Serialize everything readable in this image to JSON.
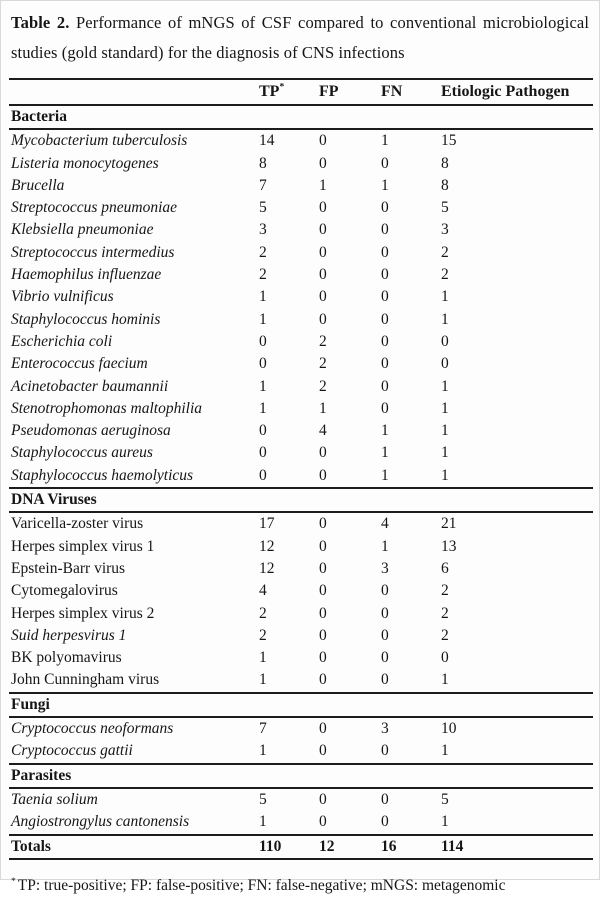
{
  "colors": {
    "background": "#fdfdfd",
    "text": "#161616",
    "rule": "#1c1c1c"
  },
  "title": {
    "label": "Table 2.",
    "text": " Performance of mNGS of CSF compared to conventional microbiological studies (gold standard) for the diagnosis of CNS infections"
  },
  "table": {
    "header": {
      "pathogen": "",
      "tp": "TP",
      "tp_marker": "*",
      "fp": "FP",
      "fn": "FN",
      "ep": "Etiologic Pathogen"
    },
    "sections": [
      {
        "name": "Bacteria",
        "rows": [
          {
            "pathogen": "Mycobacterium tuberculosis",
            "italic": true,
            "tp": "14",
            "fp": "0",
            "fn": "1",
            "ep": "15"
          },
          {
            "pathogen": "Listeria monocytogenes",
            "italic": true,
            "tp": "8",
            "fp": "0",
            "fn": "0",
            "ep": "8"
          },
          {
            "pathogen": "Brucella",
            "italic": true,
            "tp": "7",
            "fp": "1",
            "fn": "1",
            "ep": "8"
          },
          {
            "pathogen": "Streptococcus pneumoniae",
            "italic": true,
            "tp": "5",
            "fp": "0",
            "fn": "0",
            "ep": "5"
          },
          {
            "pathogen": "Klebsiella pneumoniae",
            "italic": true,
            "tp": "3",
            "fp": "0",
            "fn": "0",
            "ep": "3"
          },
          {
            "pathogen": "Streptococcus intermedius",
            "italic": true,
            "tp": "2",
            "fp": "0",
            "fn": "0",
            "ep": "2"
          },
          {
            "pathogen": "Haemophilus influenzae",
            "italic": true,
            "tp": "2",
            "fp": "0",
            "fn": "0",
            "ep": "2"
          },
          {
            "pathogen": "Vibrio vulnificus",
            "italic": true,
            "tp": "1",
            "fp": "0",
            "fn": "0",
            "ep": "1"
          },
          {
            "pathogen": "Staphylococcus hominis",
            "italic": true,
            "tp": "1",
            "fp": "0",
            "fn": "0",
            "ep": "1"
          },
          {
            "pathogen": "Escherichia coli",
            "italic": true,
            "tp": "0",
            "fp": "2",
            "fn": "0",
            "ep": "0"
          },
          {
            "pathogen": "Enterococcus faecium",
            "italic": true,
            "tp": "0",
            "fp": "2",
            "fn": "0",
            "ep": "0"
          },
          {
            "pathogen": "Acinetobacter baumannii",
            "italic": true,
            "tp": "1",
            "fp": "2",
            "fn": "0",
            "ep": "1"
          },
          {
            "pathogen": "Stenotrophomonas maltophilia",
            "italic": true,
            "tp": "1",
            "fp": "1",
            "fn": "0",
            "ep": "1"
          },
          {
            "pathogen": "Pseudomonas aeruginosa",
            "italic": true,
            "tp": "0",
            "fp": "4",
            "fn": "1",
            "ep": "1"
          },
          {
            "pathogen": "Staphylococcus aureus",
            "italic": true,
            "tp": "0",
            "fp": "0",
            "fn": "1",
            "ep": "1"
          },
          {
            "pathogen": "Staphylococcus haemolyticus",
            "italic": true,
            "tp": "0",
            "fp": "0",
            "fn": "1",
            "ep": "1"
          }
        ]
      },
      {
        "name": "DNA Viruses",
        "rows": [
          {
            "pathogen": "Varicella-zoster virus",
            "italic": false,
            "tp": "17",
            "fp": "0",
            "fn": "4",
            "ep": "21"
          },
          {
            "pathogen": "Herpes simplex virus 1",
            "italic": false,
            "tp": "12",
            "fp": "0",
            "fn": "1",
            "ep": "13"
          },
          {
            "pathogen": "Epstein-Barr virus",
            "italic": false,
            "tp": "12",
            "fp": "0",
            "fn": "3",
            "ep": "6"
          },
          {
            "pathogen": "Cytomegalovirus",
            "italic": false,
            "tp": "4",
            "fp": "0",
            "fn": "0",
            "ep": "2"
          },
          {
            "pathogen": "Herpes simplex virus 2",
            "italic": false,
            "tp": "2",
            "fp": "0",
            "fn": "0",
            "ep": "2"
          },
          {
            "pathogen": "Suid herpesvirus 1",
            "italic": true,
            "tp": "2",
            "fp": "0",
            "fn": "0",
            "ep": "2"
          },
          {
            "pathogen": "BK polyomavirus",
            "italic": false,
            "tp": "1",
            "fp": "0",
            "fn": "0",
            "ep": "0"
          },
          {
            "pathogen": "John Cunningham virus",
            "italic": false,
            "tp": "1",
            "fp": "0",
            "fn": "0",
            "ep": "1"
          }
        ]
      },
      {
        "name": "Fungi",
        "rows": [
          {
            "pathogen": "Cryptococcus neoformans",
            "italic": true,
            "tp": "7",
            "fp": "0",
            "fn": "3",
            "ep": "10"
          },
          {
            "pathogen": "Cryptococcus gattii",
            "italic": true,
            "tp": "1",
            "fp": "0",
            "fn": "0",
            "ep": "1"
          }
        ]
      },
      {
        "name": "Parasites",
        "rows": [
          {
            "pathogen": "Taenia solium",
            "italic": true,
            "tp": "5",
            "fp": "0",
            "fn": "0",
            "ep": "5"
          },
          {
            "pathogen": "Angiostrongylus cantonensis",
            "italic": true,
            "tp": "1",
            "fp": "0",
            "fn": "0",
            "ep": "1"
          }
        ]
      }
    ],
    "totals": {
      "label": "Totals",
      "tp": "110",
      "fp": "12",
      "fn": "16",
      "ep": "114"
    }
  },
  "footnote": {
    "marker": "*",
    "text": "TP: true-positive; FP: false-positive; FN: false-negative; mNGS: metagenomic"
  }
}
